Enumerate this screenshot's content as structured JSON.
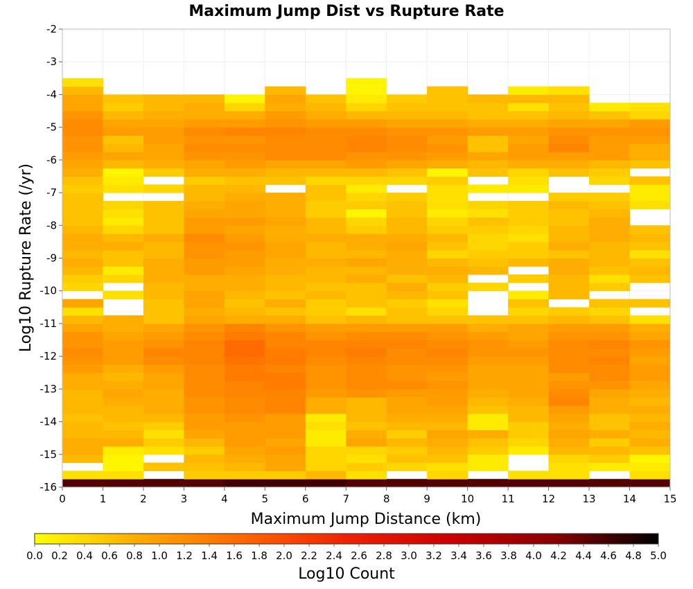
{
  "chart_data": {
    "type": "heatmap",
    "title": "Maximum Jump Dist vs Rupture Rate",
    "xlabel": "Maximum Jump Distance (km)",
    "ylabel": "Log10 Rupture Rate (/yr)",
    "colorbar_label": "Log10 Count",
    "xlim": [
      0,
      15
    ],
    "ylim": [
      -16,
      -2
    ],
    "x_ticks": [
      "0",
      "1",
      "2",
      "3",
      "4",
      "5",
      "6",
      "7",
      "8",
      "9",
      "10",
      "11",
      "12",
      "13",
      "14",
      "15"
    ],
    "y_ticks": [
      "-2",
      "-3",
      "-4",
      "-5",
      "-6",
      "-7",
      "-8",
      "-9",
      "-10",
      "-11",
      "-12",
      "-13",
      "-14",
      "-15",
      "-16"
    ],
    "colorbar_ticks": [
      "0.0",
      "0.2",
      "0.4",
      "0.6",
      "0.8",
      "1.0",
      "1.2",
      "1.4",
      "1.6",
      "1.8",
      "2.0",
      "2.2",
      "2.4",
      "2.6",
      "2.8",
      "3.0",
      "3.2",
      "3.4",
      "3.6",
      "3.8",
      "4.0",
      "4.2",
      "4.4",
      "4.6",
      "4.8",
      "5.0"
    ],
    "color_range": [
      0,
      5
    ],
    "colormap": [
      "#ffff00",
      "#ffaa00",
      "#ff6600",
      "#ee2200",
      "#cc0000",
      "#880000",
      "#000000"
    ],
    "x_bin_size": 1,
    "y_bin_size": 0.25,
    "y_bin_starts": [
      -16.0,
      -15.75,
      -15.5,
      -15.25,
      -15.0,
      -14.75,
      -14.5,
      -14.25,
      -14.0,
      -13.75,
      -13.5,
      -13.25,
      -13.0,
      -12.75,
      -12.5,
      -12.25,
      -12.0,
      -11.75,
      -11.5,
      -11.25,
      -11.0,
      -10.75,
      -10.5,
      -10.25,
      -10.0,
      -9.75,
      -9.5,
      -9.25,
      -9.0,
      -8.75,
      -8.5,
      -8.25,
      -8.0,
      -7.75,
      -7.5,
      -7.25,
      -7.0,
      -6.75,
      -6.5,
      -6.25,
      -6.0,
      -5.75,
      -5.5,
      -5.25,
      -5.0,
      -4.75,
      -4.5,
      -4.25,
      -4.0,
      -3.75
    ],
    "x_bin_starts": [
      0,
      1,
      2,
      3,
      4,
      5,
      6,
      7,
      8,
      9,
      10,
      11,
      12,
      13,
      14
    ],
    "z_values": [
      [
        4.5,
        4.5,
        4.5,
        4.5,
        4.6,
        4.6,
        4.6,
        4.5,
        4.5,
        4.5,
        4.5,
        4.5,
        4.5,
        4.5,
        4.5
      ],
      [
        0.3,
        0.3,
        null,
        0.5,
        0.5,
        0.5,
        0.7,
        0.3,
        null,
        0.4,
        null,
        0.3,
        0.3,
        null,
        0.3
      ],
      [
        null,
        0.1,
        0.6,
        0.6,
        0.7,
        0.9,
        0.4,
        0.5,
        0.4,
        0.3,
        0.2,
        null,
        0.3,
        0.2,
        0.2
      ],
      [
        0.7,
        0.1,
        null,
        0.7,
        0.8,
        0.9,
        0.4,
        0.3,
        0.6,
        0.6,
        0.2,
        null,
        0.4,
        0.5,
        0.1
      ],
      [
        0.8,
        0.2,
        0.3,
        0.5,
        0.9,
        1.0,
        0.4,
        0.4,
        0.5,
        0.7,
        0.5,
        0.2,
        0.7,
        0.7,
        0.6
      ],
      [
        0.8,
        0.8,
        0.5,
        0.7,
        1.0,
        0.9,
        0.2,
        0.9,
        0.7,
        0.8,
        0.6,
        0.4,
        0.8,
        0.5,
        0.8
      ],
      [
        0.7,
        0.7,
        0.3,
        0.9,
        1.0,
        1.0,
        0.2,
        0.8,
        0.5,
        0.9,
        0.8,
        0.5,
        0.9,
        0.8,
        0.7
      ],
      [
        0.7,
        0.6,
        0.5,
        1.0,
        1.0,
        1.0,
        0.3,
        0.6,
        0.7,
        0.7,
        0.2,
        0.5,
        0.8,
        0.6,
        0.8
      ],
      [
        0.6,
        0.7,
        0.7,
        1.0,
        1.1,
        1.0,
        0.2,
        0.7,
        0.8,
        0.8,
        0.2,
        0.7,
        0.9,
        0.6,
        0.7
      ],
      [
        0.7,
        0.7,
        0.8,
        1.1,
        1.2,
        1.3,
        0.8,
        0.7,
        0.9,
        0.9,
        0.6,
        0.7,
        1.0,
        0.8,
        0.8
      ],
      [
        0.7,
        0.8,
        0.8,
        1.1,
        1.2,
        1.3,
        0.8,
        0.7,
        0.9,
        1.0,
        0.7,
        0.8,
        1.3,
        0.8,
        0.7
      ],
      [
        0.7,
        0.9,
        0.8,
        1.2,
        1.3,
        1.3,
        1.0,
        1.1,
        1.0,
        1.0,
        0.8,
        0.9,
        1.2,
        0.9,
        0.8
      ],
      [
        0.8,
        0.8,
        0.9,
        1.2,
        1.3,
        1.4,
        1.1,
        1.2,
        1.2,
        1.1,
        0.9,
        0.9,
        1.1,
        1.1,
        0.9
      ],
      [
        0.8,
        0.7,
        0.9,
        1.2,
        1.4,
        1.4,
        1.1,
        1.2,
        1.1,
        1.0,
        0.9,
        0.9,
        1.0,
        1.2,
        1.0
      ],
      [
        1.0,
        0.8,
        1.0,
        1.2,
        1.4,
        1.3,
        1.1,
        1.2,
        1.1,
        1.1,
        0.9,
        0.9,
        1.2,
        1.2,
        1.0
      ],
      [
        1.1,
        1.0,
        1.2,
        1.3,
        1.5,
        1.4,
        1.2,
        1.3,
        1.2,
        1.2,
        1.0,
        1.0,
        1.2,
        1.3,
        0.9
      ],
      [
        1.2,
        1.0,
        1.3,
        1.3,
        1.6,
        1.4,
        1.3,
        1.4,
        1.2,
        1.3,
        1.1,
        1.1,
        1.2,
        1.2,
        1.0
      ],
      [
        1.1,
        1.0,
        1.1,
        1.3,
        1.6,
        1.3,
        1.3,
        1.3,
        1.3,
        1.2,
        1.1,
        1.0,
        1.2,
        1.3,
        1.1
      ],
      [
        1.1,
        0.9,
        1.0,
        1.2,
        1.4,
        1.3,
        1.1,
        1.2,
        1.2,
        1.1,
        1.0,
        0.9,
        1.1,
        1.1,
        0.9
      ],
      [
        0.9,
        0.8,
        0.9,
        1.1,
        1.3,
        1.1,
        1.0,
        1.0,
        1.0,
        1.0,
        0.8,
        0.9,
        1.0,
        1.0,
        0.8
      ],
      [
        0.7,
        0.8,
        0.6,
        0.9,
        0.8,
        0.8,
        0.6,
        0.7,
        0.6,
        0.6,
        0.6,
        0.6,
        0.7,
        0.6,
        0.3
      ],
      [
        0.3,
        null,
        0.6,
        0.8,
        0.7,
        0.6,
        0.5,
        0.3,
        0.6,
        0.4,
        null,
        0.4,
        0.5,
        0.4,
        null
      ],
      [
        0.9,
        null,
        0.6,
        0.9,
        0.6,
        0.8,
        0.5,
        0.6,
        0.5,
        0.3,
        null,
        0.6,
        null,
        0.6,
        0.6
      ],
      [
        null,
        0.3,
        0.7,
        0.9,
        0.7,
        0.6,
        0.7,
        0.6,
        0.7,
        0.6,
        null,
        0.2,
        0.7,
        null,
        null
      ],
      [
        0.4,
        null,
        0.7,
        0.8,
        0.8,
        0.7,
        0.6,
        0.6,
        0.8,
        0.5,
        0.4,
        null,
        0.7,
        0.5,
        null
      ],
      [
        0.5,
        0.4,
        0.8,
        0.8,
        0.8,
        0.7,
        0.7,
        0.8,
        0.6,
        0.7,
        null,
        0.5,
        0.7,
        0.3,
        0.6
      ],
      [
        0.7,
        0.2,
        0.8,
        1.0,
        0.9,
        0.8,
        0.7,
        0.7,
        0.8,
        0.8,
        0.7,
        null,
        0.8,
        0.6,
        0.7
      ],
      [
        0.8,
        0.6,
        0.8,
        1.0,
        1.0,
        0.8,
        0.8,
        0.9,
        0.8,
        0.7,
        0.6,
        0.7,
        0.8,
        0.7,
        0.6
      ],
      [
        0.7,
        0.6,
        0.7,
        1.1,
        1.0,
        0.9,
        0.7,
        0.7,
        0.8,
        0.4,
        0.5,
        0.5,
        0.6,
        0.7,
        0.3
      ],
      [
        0.8,
        0.8,
        0.7,
        1.1,
        1.1,
        0.9,
        0.7,
        0.8,
        0.9,
        0.6,
        0.4,
        0.5,
        0.8,
        0.7,
        0.6
      ],
      [
        0.8,
        0.7,
        0.8,
        1.2,
        1.0,
        0.8,
        0.8,
        0.8,
        0.8,
        0.7,
        0.4,
        0.3,
        0.7,
        0.8,
        0.7
      ],
      [
        0.7,
        0.4,
        0.6,
        1.0,
        0.9,
        0.8,
        0.7,
        0.5,
        0.7,
        0.5,
        0.5,
        0.4,
        0.7,
        0.8,
        0.6
      ],
      [
        0.6,
        0.2,
        0.6,
        1.0,
        1.0,
        0.9,
        0.7,
        0.4,
        0.7,
        0.4,
        0.6,
        0.5,
        0.6,
        0.8,
        null
      ],
      [
        0.6,
        0.3,
        0.6,
        0.9,
        0.9,
        0.8,
        0.5,
        0.1,
        0.6,
        0.2,
        0.3,
        0.5,
        0.6,
        0.7,
        null
      ],
      [
        0.6,
        0.4,
        0.6,
        0.8,
        0.9,
        0.8,
        0.5,
        0.5,
        0.6,
        0.3,
        0.4,
        0.5,
        0.7,
        0.6,
        0.3
      ],
      [
        0.6,
        null,
        null,
        0.7,
        0.8,
        0.8,
        0.6,
        0.4,
        0.5,
        0.3,
        null,
        null,
        0.5,
        0.5,
        0.2
      ],
      [
        0.5,
        0.3,
        0.4,
        0.7,
        0.7,
        null,
        0.6,
        0.2,
        null,
        0.3,
        0.2,
        0.2,
        null,
        null,
        0.2
      ],
      [
        0.6,
        0.2,
        null,
        0.5,
        0.6,
        0.6,
        0.4,
        0.4,
        0.4,
        0.5,
        null,
        0.3,
        null,
        0.4,
        0.6
      ],
      [
        0.8,
        0.1,
        0.5,
        0.8,
        0.8,
        0.7,
        0.7,
        0.7,
        0.6,
        0.1,
        0.6,
        0.4,
        0.6,
        0.5,
        null
      ],
      [
        0.9,
        0.7,
        0.8,
        0.9,
        1.0,
        0.9,
        0.9,
        1.0,
        0.9,
        0.8,
        0.7,
        0.8,
        0.8,
        0.7,
        0.6
      ],
      [
        1.0,
        0.9,
        0.9,
        1.1,
        1.1,
        1.2,
        1.2,
        1.1,
        1.1,
        1.0,
        0.9,
        1.0,
        1.0,
        1.0,
        0.8
      ],
      [
        1.1,
        0.7,
        0.9,
        1.2,
        1.2,
        1.2,
        1.2,
        1.3,
        1.2,
        1.1,
        0.6,
        1.0,
        1.3,
        1.0,
        0.8
      ],
      [
        1.1,
        0.6,
        1.0,
        1.1,
        1.1,
        1.2,
        1.2,
        1.3,
        1.2,
        1.0,
        0.6,
        0.9,
        1.2,
        1.0,
        1.0
      ],
      [
        1.2,
        1.0,
        1.0,
        1.2,
        1.3,
        1.3,
        1.2,
        1.2,
        1.1,
        1.1,
        1.0,
        1.0,
        1.1,
        1.1,
        1.1
      ],
      [
        1.2,
        0.9,
        0.9,
        1.0,
        1.0,
        1.1,
        1.0,
        1.0,
        0.9,
        0.9,
        0.8,
        0.8,
        0.9,
        0.9,
        1.0
      ],
      [
        1.1,
        0.7,
        0.8,
        0.8,
        0.8,
        1.0,
        0.8,
        0.7,
        0.7,
        0.7,
        0.6,
        0.6,
        0.7,
        0.6,
        0.4
      ],
      [
        0.9,
        0.5,
        0.7,
        0.8,
        0.4,
        0.8,
        0.7,
        0.4,
        0.6,
        0.6,
        0.6,
        0.3,
        0.6,
        0.2,
        0.3
      ],
      [
        0.9,
        0.6,
        0.7,
        0.7,
        0.1,
        0.9,
        0.6,
        0.2,
        0.5,
        0.6,
        0.7,
        0.7,
        0.7,
        null,
        null
      ],
      [
        0.7,
        null,
        null,
        null,
        null,
        0.7,
        null,
        0.1,
        null,
        0.6,
        null,
        0.2,
        0.3,
        null,
        null
      ],
      [
        0.3,
        null,
        null,
        null,
        null,
        null,
        null,
        0.1,
        null,
        null,
        null,
        null,
        null,
        null,
        null
      ]
    ]
  }
}
